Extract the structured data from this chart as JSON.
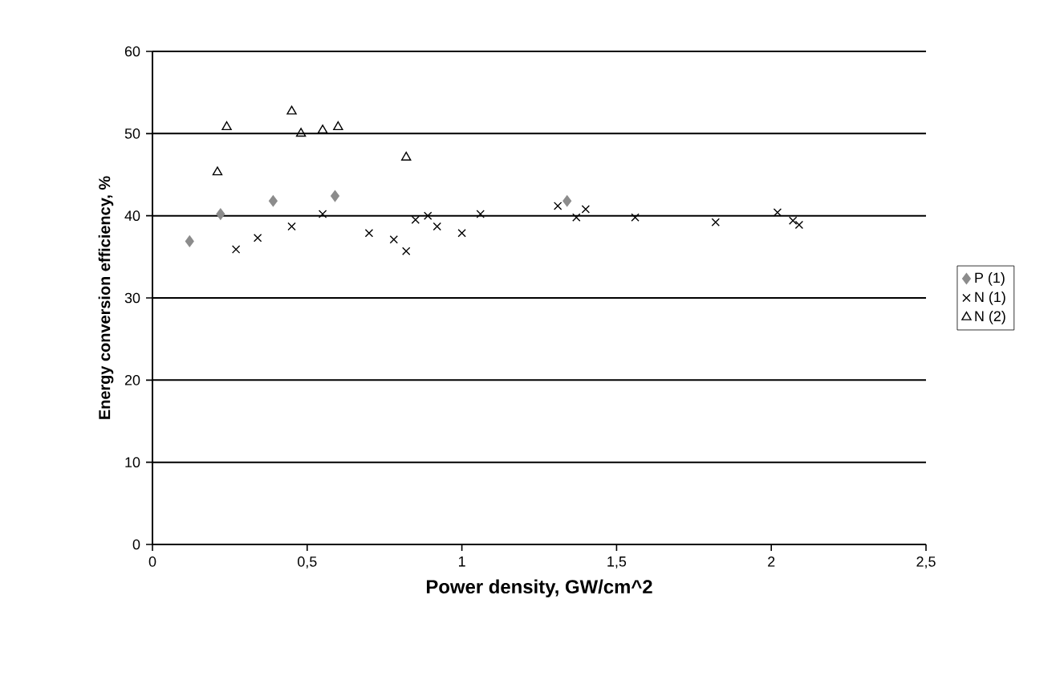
{
  "chart_data": {
    "type": "scatter",
    "xlabel": "Power  density, GW/cm^2",
    "ylabel": "Energy conversion efficiency, %",
    "xlim": [
      0,
      2.5
    ],
    "ylim": [
      0,
      60
    ],
    "xticks": [
      0,
      {
        "value": 0.5,
        "label": "0,5"
      },
      1,
      {
        "value": 1.5,
        "label": "1,5"
      },
      2,
      {
        "value": 2.5,
        "label": "2,5"
      }
    ],
    "yticks": [
      0,
      10,
      20,
      30,
      40,
      50,
      60
    ],
    "grid": "y",
    "legend": "right",
    "series": [
      {
        "name": "P (1)",
        "color": "#8c8c8c",
        "marker": "diamond",
        "x": [
          0.12,
          0.22,
          0.39,
          0.59,
          1.34
        ],
        "values": [
          36.9,
          40.2,
          41.8,
          42.4,
          41.8
        ]
      },
      {
        "name": "N (1)",
        "color": "#000000",
        "marker": "cross",
        "x": [
          0.27,
          0.34,
          0.45,
          0.55,
          0.7,
          0.78,
          0.82,
          0.85,
          0.89,
          0.92,
          1.0,
          1.06,
          1.31,
          1.37,
          1.4,
          1.56,
          1.82,
          2.02,
          2.07,
          2.09
        ],
        "values": [
          35.9,
          37.3,
          38.7,
          40.2,
          37.9,
          37.1,
          35.7,
          39.5,
          40.0,
          38.7,
          37.9,
          40.2,
          41.2,
          39.8,
          40.8,
          39.8,
          39.2,
          40.4,
          39.4,
          38.9
        ]
      },
      {
        "name": "N (2)",
        "color": "#000000",
        "marker": "triangle",
        "x": [
          0.21,
          0.24,
          0.45,
          0.48,
          0.55,
          0.6,
          0.82
        ],
        "values": [
          45.3,
          50.8,
          52.7,
          50.0,
          50.4,
          50.8,
          47.1
        ]
      }
    ]
  }
}
